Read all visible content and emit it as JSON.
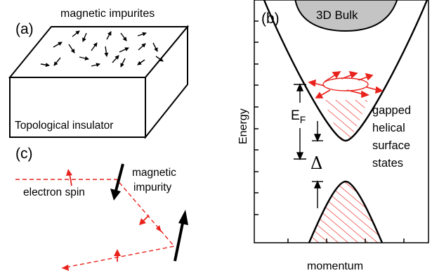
{
  "panel_a": {
    "label": "(a)",
    "top_label": "magnetic impurites",
    "box_label": "Topological insulator"
  },
  "panel_b": {
    "label": "(b)",
    "bulk_label": "3D Bulk",
    "y_axis_label": "Energy",
    "x_axis_label": "momentum",
    "fermi_label": "E",
    "fermi_subscript": "F",
    "gap_label": "Δ",
    "states_label_lines": [
      "gapped",
      "helical",
      "surface",
      "states"
    ]
  },
  "panel_c": {
    "label": "(c)",
    "spin_label": "electron spin",
    "impurity_label_lines": [
      "magnetic",
      "impurity"
    ]
  },
  "colors": {
    "spin_red": "#e8221c",
    "bulk_gray": "#c4c4c4",
    "line_black": "#000000"
  }
}
